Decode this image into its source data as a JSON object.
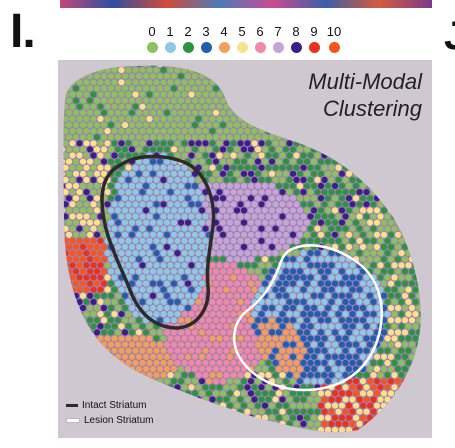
{
  "panel_label": "I.",
  "next_panel_label": "J",
  "clusters": [
    {
      "id": "0",
      "color": "#8cc060"
    },
    {
      "id": "1",
      "color": "#8ec9e3"
    },
    {
      "id": "2",
      "color": "#2a9441"
    },
    {
      "id": "3",
      "color": "#1f5fae"
    },
    {
      "id": "4",
      "color": "#f0a05c"
    },
    {
      "id": "5",
      "color": "#fbe28a"
    },
    {
      "id": "6",
      "color": "#ee8aa6"
    },
    {
      "id": "7",
      "color": "#c3a6d6"
    },
    {
      "id": "8",
      "color": "#3b1f87"
    },
    {
      "id": "9",
      "color": "#e8321e"
    },
    {
      "id": "10",
      "color": "#f5561e"
    }
  ],
  "overlay_title_line1": "Multi-Modal",
  "overlay_title_line2": "Clustering",
  "outlines": [
    {
      "label": "Intact Striatum",
      "color": "#2b2b2b"
    },
    {
      "label": "Lesion Striatum",
      "color": "#ffffff"
    }
  ]
}
